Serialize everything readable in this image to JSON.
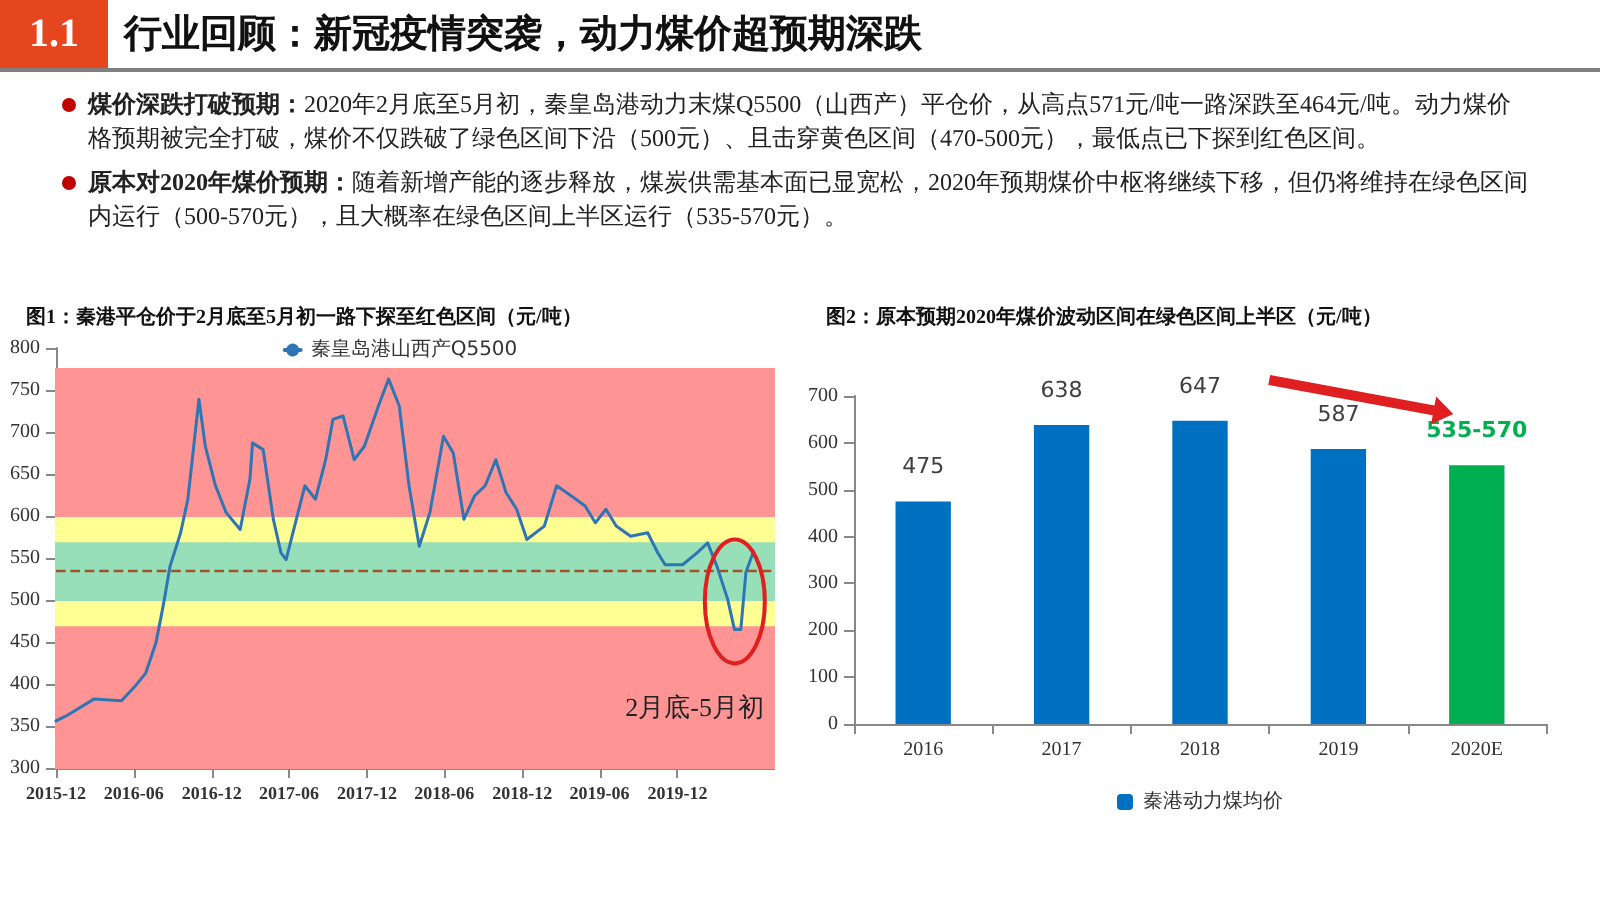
{
  "chart_data": [
    {
      "type": "other",
      "title": "行业回顾：新冠疫情突袭，动力煤价超预期深跌",
      "subtitle": "1.1",
      "annotations": [
        "煤价深跌打破预期：2020年2月底至5月初，秦皇岛港动力末煤Q5500（山西产）平仓价，从高点571元/吨一路深跌至464元/吨。动力煤价格预期被完全打破，煤价不仅跌破了绿色区间下沿（500元）、且击穿黄色区间（470-500元），最低点已下探到红色区间。",
        "原本对2020年煤价预期：随着新增产能的逐步释放，煤炭供需基本面已显宽松，2020年预期煤价中枢将继续下移，但仍将维持在绿色区间内运行（500-570元），且大概率在绿色区间上半区运行（535-570元）。"
      ]
    },
    {
      "type": "line",
      "title": "图1：秦港平仓价于2月底至5月初一路下探至红色区间（元/吨）",
      "x": [
        "2015-12-01",
        "2015-12-25",
        "2016-02-28",
        "2016-05-03",
        "2016-06-05",
        "2016-06-29",
        "2016-07-23",
        "2016-08-09",
        "2016-08-25",
        "2016-09-19",
        "2016-10-06",
        "2016-11-01",
        "2016-11-16",
        "2016-12-10",
        "2017-01-04",
        "2017-02-06",
        "2017-03-01",
        "2017-03-07",
        "2017-04-01",
        "2017-04-25",
        "2017-05-13",
        "2017-05-25",
        "2017-06-14",
        "2017-07-08",
        "2017-08-02",
        "2017-08-26",
        "2017-09-12",
        "2017-10-06",
        "2017-11-01",
        "2017-11-25",
        "2017-12-28",
        "2018-01-21",
        "2018-02-15",
        "2018-03-10",
        "2018-04-03",
        "2018-04-28",
        "2018-05-30",
        "2018-06-22",
        "2018-07-17",
        "2018-08-11",
        "2018-09-05",
        "2018-09-30",
        "2018-10-24",
        "2018-11-18",
        "2018-12-12",
        "2019-01-22",
        "2019-02-20",
        "2019-03-26",
        "2019-04-28",
        "2019-05-22",
        "2019-06-16",
        "2019-07-10",
        "2019-08-13",
        "2019-09-22",
        "2019-10-16",
        "2019-11-02",
        "2019-12-13",
        "2020-01-16",
        "2020-02-10",
        "2020-03-03",
        "2020-03-28",
        "2020-04-13",
        "2020-04-28",
        "2020-05-10",
        "2020-05-28"
      ],
      "series": [
        {
          "name": "秦皇岛港山西产Q5500",
          "color": "#2e75b6",
          "values": [
            356,
            362,
            382,
            380,
            398,
            413,
            449,
            493,
            540,
            580,
            620,
            739,
            683,
            636,
            604,
            584,
            644,
            687,
            679,
            596,
            556,
            548,
            588,
            636,
            620,
            667,
            715,
            719,
            667,
            683,
            731,
            763,
            731,
            636,
            564,
            604,
            695,
            675,
            596,
            624,
            636,
            667,
            628,
            608,
            572,
            588,
            636,
            624,
            612,
            592,
            608,
            588,
            576,
            580,
            556,
            542,
            542,
            556,
            568,
            540,
            501,
            465,
            465,
            533,
            558
          ]
        }
      ],
      "xlim": [
        "2015-12-01",
        "2020-07-15"
      ],
      "xticks": [
        "2015-12",
        "2016-06",
        "2016-12",
        "2017-06",
        "2017-12",
        "2018-06",
        "2018-12",
        "2019-06",
        "2019-12"
      ],
      "ylim": [
        300,
        800
      ],
      "yticks": [
        300,
        350,
        400,
        450,
        500,
        550,
        600,
        650,
        700,
        750,
        800
      ],
      "bands": [
        {
          "axis": "y",
          "from": 300,
          "to": 470,
          "color": "#ff9494"
        },
        {
          "axis": "y",
          "from": 470,
          "to": 500,
          "color": "#ffff94"
        },
        {
          "axis": "y",
          "from": 500,
          "to": 570,
          "color": "#96dfb8"
        },
        {
          "axis": "y",
          "from": 570,
          "to": 600,
          "color": "#ffff94"
        },
        {
          "axis": "y",
          "from": 600,
          "to": 775,
          "color": "#ff9494"
        }
      ],
      "ref_lines": [
        {
          "axis": "y",
          "value": 535,
          "color": "#a0522d",
          "line_style": "dashed"
        }
      ],
      "annotations": [
        "2月底-5月初"
      ],
      "legend": "top",
      "grid": false,
      "marker": "none"
    },
    {
      "type": "bar",
      "title": "图2：原本预期2020年煤价波动区间在绿色区间上半区（元/吨）",
      "categories": [
        "2016",
        "2017",
        "2018",
        "2019",
        "2020E"
      ],
      "series": [
        {
          "name": "秦港动力煤均价",
          "color": "#0070c0",
          "values": [
            475,
            638,
            647,
            587,
            552
          ],
          "colors": [
            "#0070c0",
            "#0070c0",
            "#0070c0",
            "#0070c0",
            "#00b050"
          ],
          "value_labels": [
            "475",
            "638",
            "647",
            "587",
            "535-570"
          ]
        }
      ],
      "ylim": [
        0,
        700
      ],
      "yticks": [
        0,
        100,
        200,
        300,
        400,
        500,
        600,
        700
      ],
      "legend": "bottom",
      "grid": false
    }
  ]
}
